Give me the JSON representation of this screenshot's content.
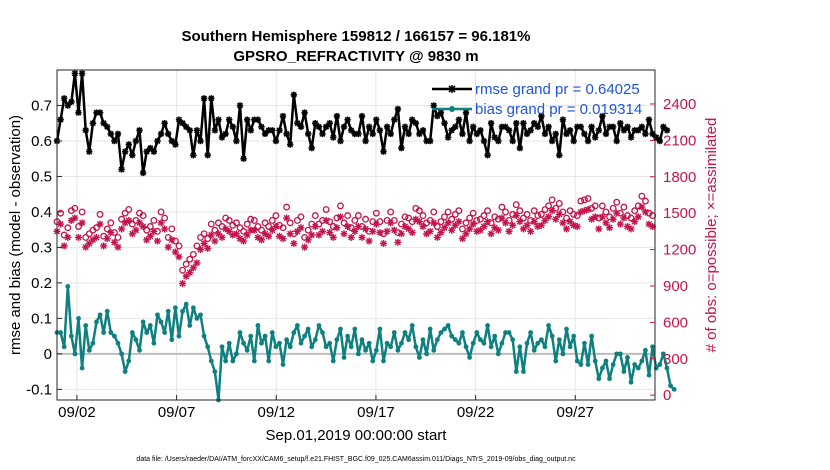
{
  "chart_data": {
    "type": "line",
    "title": "Southern Hemisphere 159812 / 166157 = 96.181%",
    "subtitle": "GPSRO_REFRACTIVITY @ 9830 m",
    "xlabel": "Sep.01,2019 00:00:00 start",
    "ylabel": "rmse and bias (model - observation)",
    "y2label": "# of obs: o=possible; ×=assimilated",
    "x_tick_labels": [
      "09/02",
      "09/07",
      "09/12",
      "09/17",
      "09/22",
      "09/27"
    ],
    "x_tick_days": [
      2,
      7,
      12,
      17,
      22,
      27
    ],
    "xlim": [
      1.0,
      31.0
    ],
    "ylim": [
      -0.13,
      0.8
    ],
    "y_ticks": [
      -0.1,
      0,
      0.1,
      0.2,
      0.3,
      0.4,
      0.5,
      0.6,
      0.7
    ],
    "y_tick_labels": [
      "-0.1",
      "0",
      "0.1",
      "0.2",
      "0.3",
      "0.4",
      "0.5",
      "0.6",
      "0.7"
    ],
    "y2lim": [
      -40,
      2680
    ],
    "y2_ticks": [
      0,
      300,
      600,
      900,
      1200,
      1500,
      1800,
      2100,
      2400
    ],
    "y2_tick_labels": [
      "0",
      "300",
      "600",
      "900",
      "1200",
      "1500",
      "1800",
      "2100",
      "2400"
    ],
    "grid": true,
    "legend_position": "top-right",
    "series": [
      {
        "name": "rmse grand pr = 0.64025",
        "color": "#000000",
        "marker": "asterisk",
        "axis": "left",
        "values": [
          0.6,
          0.66,
          0.72,
          0.7,
          0.71,
          0.79,
          0.68,
          0.79,
          0.63,
          0.57,
          0.65,
          0.68,
          0.68,
          0.65,
          0.64,
          0.62,
          0.6,
          0.62,
          0.52,
          0.57,
          0.59,
          0.56,
          0.6,
          0.63,
          0.51,
          0.57,
          0.58,
          0.57,
          0.6,
          0.62,
          0.65,
          0.62,
          0.6,
          0.59,
          0.66,
          0.65,
          0.64,
          0.63,
          0.56,
          0.63,
          0.6,
          0.72,
          0.56,
          0.72,
          0.63,
          0.66,
          0.61,
          0.62,
          0.66,
          0.64,
          0.6,
          0.7,
          0.55,
          0.66,
          0.63,
          0.66,
          0.66,
          0.64,
          0.62,
          0.63,
          0.63,
          0.6,
          0.63,
          0.67,
          0.62,
          0.59,
          0.73,
          0.65,
          0.64,
          0.68,
          0.62,
          0.58,
          0.65,
          0.64,
          0.62,
          0.64,
          0.65,
          0.61,
          0.67,
          0.6,
          0.64,
          0.66,
          0.63,
          0.62,
          0.62,
          0.67,
          0.6,
          0.64,
          0.62,
          0.66,
          0.63,
          0.57,
          0.64,
          0.62,
          0.66,
          0.69,
          0.58,
          0.64,
          0.62,
          0.66,
          0.65,
          0.62,
          0.63,
          0.6,
          0.6,
          0.7,
          0.67,
          0.68,
          0.65,
          0.61,
          0.63,
          0.64,
          0.66,
          0.62,
          0.68,
          0.6,
          0.64,
          0.62,
          0.63,
          0.6,
          0.56,
          0.65,
          0.61,
          0.6,
          0.64,
          0.64,
          0.63,
          0.6,
          0.65,
          0.58,
          0.65,
          0.62,
          0.63,
          0.65,
          0.64,
          0.67,
          0.62,
          0.64,
          0.6,
          0.62,
          0.56,
          0.66,
          0.62,
          0.63,
          0.6,
          0.64,
          0.64,
          0.62,
          0.6,
          0.64,
          0.61,
          0.63,
          0.67,
          0.62,
          0.64,
          0.64,
          0.6,
          0.65,
          0.63,
          0.64,
          0.61,
          0.63,
          0.63,
          0.64,
          0.62,
          0.66,
          0.62,
          0.61,
          0.6,
          0.64,
          0.63
        ],
        "x_start": 1.0,
        "x_step": 0.18
      },
      {
        "name": "bias grand pr = 0.019314",
        "color": "#0f8080",
        "marker": "circle",
        "axis": "left",
        "values": [
          0.06,
          0.06,
          0.02,
          0.19,
          0.05,
          0.0,
          0.1,
          -0.04,
          0.08,
          0.01,
          0.03,
          0.09,
          0.11,
          0.06,
          0.12,
          0.06,
          0.05,
          0.03,
          0.0,
          -0.05,
          -0.02,
          0.06,
          0.04,
          0.01,
          0.09,
          0.06,
          0.08,
          0.03,
          0.11,
          0.09,
          0.06,
          0.12,
          0.04,
          0.13,
          0.05,
          0.12,
          0.14,
          0.08,
          0.13,
          0.1,
          0.11,
          0.05,
          0.02,
          -0.02,
          -0.05,
          -0.13,
          0.02,
          -0.02,
          0.03,
          -0.02,
          0.0,
          0.06,
          0.03,
          0.01,
          0.05,
          -0.02,
          0.08,
          0.03,
          0.05,
          -0.02,
          0.06,
          0.02,
          0.03,
          -0.03,
          0.04,
          0.02,
          0.06,
          0.08,
          0.03,
          0.05,
          0.07,
          0.02,
          0.04,
          0.08,
          0.06,
          0.02,
          0.03,
          -0.02,
          0.04,
          0.07,
          -0.01,
          0.05,
          0.02,
          0.07,
          0.0,
          0.04,
          0.01,
          0.03,
          -0.02,
          0.01,
          0.07,
          -0.02,
          0.03,
          0.02,
          0.06,
          0.01,
          0.03,
          0.06,
          0.04,
          0.08,
          0.02,
          -0.01,
          0.04,
          0.0,
          0.07,
          0.01,
          0.04,
          0.06,
          0.07,
          0.08,
          0.05,
          0.04,
          0.03,
          0.06,
          0.02,
          -0.01,
          0.03,
          0.06,
          0.04,
          0.03,
          0.08,
          0.02,
          0.05,
          0.0,
          0.03,
          0.06,
          0.06,
          0.04,
          -0.05,
          0.02,
          -0.05,
          0.03,
          0.06,
          0.01,
          0.03,
          0.04,
          0.02,
          0.08,
          0.05,
          -0.02,
          0.04,
          0.0,
          0.07,
          0.02,
          0.05,
          -0.02,
          -0.03,
          0.03,
          -0.03,
          0.05,
          -0.02,
          -0.07,
          -0.04,
          -0.02,
          -0.07,
          -0.03,
          0.0,
          0.0,
          -0.05,
          -0.01,
          -0.08,
          -0.03,
          -0.04,
          -0.02,
          0.01,
          -0.06,
          0.02,
          -0.04,
          -0.03,
          0.0,
          -0.04,
          -0.09,
          -0.1
        ],
        "x_start": 1.0,
        "x_step": 0.18
      }
    ],
    "obs_series": [
      {
        "name": "possible",
        "marker": "circle",
        "color": "#c4144c",
        "axis": "right",
        "values": [
          1430,
          1500,
          1320,
          1380,
          1520,
          1540,
          1390,
          1510,
          1300,
          1330,
          1360,
          1380,
          1490,
          1310,
          1370,
          1420,
          1340,
          1300,
          1450,
          1500,
          1530,
          1410,
          1440,
          1500,
          1480,
          1360,
          1390,
          1440,
          1350,
          1510,
          1460,
          1300,
          1370,
          1270,
          1230,
          1030,
          1080,
          1120,
          1160,
          1230,
          1300,
          1330,
          1290,
          1410,
          1360,
          1420,
          1390,
          1460,
          1440,
          1400,
          1420,
          1380,
          1350,
          1410,
          1450,
          1440,
          1390,
          1360,
          1420,
          1390,
          1440,
          1480,
          1400,
          1380,
          1550,
          1420,
          1330,
          1440,
          1470,
          1300,
          1360,
          1410,
          1480,
          1410,
          1440,
          1530,
          1430,
          1390,
          1460,
          1560,
          1420,
          1480,
          1380,
          1440,
          1480,
          1390,
          1450,
          1350,
          1430,
          1500,
          1430,
          1330,
          1440,
          1510,
          1440,
          1340,
          1410,
          1470,
          1460,
          1430,
          1540,
          1520,
          1480,
          1420,
          1440,
          1510,
          1390,
          1430,
          1470,
          1510,
          1450,
          1490,
          1520,
          1370,
          1420,
          1460,
          1500,
          1440,
          1450,
          1480,
          1520,
          1420,
          1470,
          1450,
          1550,
          1510,
          1440,
          1490,
          1570,
          1520,
          1460,
          1490,
          1440,
          1520,
          1480,
          1490,
          1530,
          1560,
          1610,
          1540,
          1580,
          1510,
          1460,
          1520,
          1490,
          1480,
          1600,
          1610,
          1620,
          1540,
          1560,
          1460,
          1560,
          1510,
          1470,
          1540,
          1590,
          1500,
          1550,
          1480,
          1460,
          1520,
          1560,
          1640,
          1600,
          1500,
          1480,
          1530,
          1500,
          1570,
          1650,
          1610,
          1470,
          1500,
          1520,
          1580
        ],
        "x_start": 1.0,
        "x_step": 0.18
      },
      {
        "name": "assimilated",
        "marker": "x",
        "color": "#c4144c",
        "axis": "right",
        "values": [
          1350,
          1410,
          1230,
          1300,
          1440,
          1460,
          1300,
          1420,
          1220,
          1250,
          1280,
          1300,
          1410,
          1230,
          1290,
          1340,
          1260,
          1220,
          1370,
          1420,
          1440,
          1330,
          1360,
          1420,
          1390,
          1280,
          1310,
          1350,
          1270,
          1420,
          1370,
          1220,
          1280,
          1180,
          1140,
          920,
          980,
          1010,
          1050,
          1090,
          1200,
          1250,
          1210,
          1320,
          1270,
          1330,
          1300,
          1370,
          1350,
          1320,
          1330,
          1290,
          1270,
          1320,
          1360,
          1360,
          1300,
          1280,
          1330,
          1310,
          1360,
          1390,
          1310,
          1290,
          1460,
          1330,
          1250,
          1350,
          1380,
          1220,
          1280,
          1320,
          1390,
          1320,
          1350,
          1440,
          1340,
          1300,
          1380,
          1470,
          1330,
          1390,
          1300,
          1350,
          1390,
          1300,
          1370,
          1270,
          1350,
          1410,
          1340,
          1250,
          1350,
          1420,
          1360,
          1260,
          1330,
          1390,
          1370,
          1340,
          1450,
          1430,
          1390,
          1330,
          1350,
          1420,
          1300,
          1340,
          1380,
          1420,
          1360,
          1400,
          1430,
          1290,
          1330,
          1370,
          1410,
          1350,
          1360,
          1390,
          1430,
          1330,
          1380,
          1360,
          1460,
          1420,
          1350,
          1400,
          1480,
          1430,
          1370,
          1400,
          1350,
          1430,
          1390,
          1400,
          1440,
          1470,
          1520,
          1450,
          1490,
          1420,
          1370,
          1430,
          1400,
          1390,
          1510,
          1520,
          1530,
          1450,
          1470,
          1370,
          1470,
          1420,
          1380,
          1450,
          1500,
          1410,
          1460,
          1390,
          1370,
          1430,
          1470,
          1550,
          1510,
          1410,
          1390,
          1440,
          1410,
          1480,
          1560,
          1520,
          1380,
          1410,
          1430,
          1490,
          0
        ],
        "x_start": 1.0,
        "x_step": 0.18
      }
    ],
    "zero_line": 0,
    "footnote": "data file: /Users/raeder/DAI/ATM_forcXX/CAM6_setup/f.e21.FHIST_BGC.f09_025.CAM6assim.011/Diags_NTrS_2019-09/obs_diag_output.nc"
  }
}
